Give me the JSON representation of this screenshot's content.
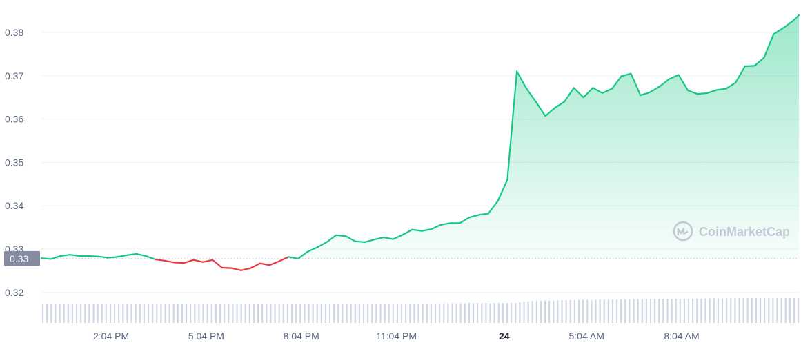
{
  "watermark": "CoinMarketCap",
  "chart_data": {
    "type": "line",
    "title": "",
    "xlabel": "",
    "ylabel": "",
    "ylim": [
      0.3135,
      0.3852
    ],
    "yticks": [
      "0.32",
      "0.33",
      "0.34",
      "0.35",
      "0.36",
      "0.37",
      "0.38"
    ],
    "xticks": [
      "2:04 PM",
      "5:04 PM",
      "8:04 PM",
      "11:04 PM",
      "24",
      "5:04 AM",
      "8:04 AM"
    ],
    "xticks_bold": [
      "24"
    ],
    "reference_price": 0.3278,
    "reference_label": "0.33",
    "grid": true,
    "legend": "none",
    "colors": {
      "up": "#16c784",
      "down": "#ea3943",
      "volume": "#cfd6e4",
      "reference_badge": "#858ca2"
    },
    "x_hours": [
      0,
      0.3,
      0.6,
      0.9,
      1.2,
      1.5,
      1.8,
      2.1,
      2.4,
      2.7,
      3.0,
      3.3,
      3.6,
      3.9,
      4.2,
      4.5,
      4.8,
      5.1,
      5.4,
      5.7,
      6.0,
      6.3,
      6.6,
      6.9,
      7.2,
      7.5,
      7.8,
      8.1,
      8.4,
      8.7,
      9.0,
      9.3,
      9.6,
      9.9,
      10.2,
      10.5,
      10.8,
      11.1,
      11.4,
      11.7,
      12.0,
      12.3,
      12.6,
      12.9,
      13.2,
      13.5,
      13.8,
      14.1,
      14.4,
      14.7,
      15.0,
      15.3,
      15.6,
      15.9,
      16.2,
      16.5,
      16.8,
      17.1,
      17.4,
      17.7,
      18.0,
      18.3,
      18.6,
      18.9,
      19.2,
      19.5,
      19.8,
      20.1,
      20.4,
      20.7,
      21.0,
      21.3,
      21.6,
      21.9,
      22.2,
      22.5,
      22.8,
      23.1,
      23.4,
      23.7,
      23.9
    ],
    "price": [
      0.3279,
      0.3277,
      0.3284,
      0.3287,
      0.3284,
      0.3284,
      0.3283,
      0.328,
      0.3282,
      0.3286,
      0.3289,
      0.3284,
      0.3276,
      0.3273,
      0.3269,
      0.3268,
      0.3275,
      0.327,
      0.3275,
      0.3257,
      0.3256,
      0.3251,
      0.3256,
      0.3267,
      0.3263,
      0.3272,
      0.3282,
      0.3278,
      0.3294,
      0.3304,
      0.3316,
      0.3332,
      0.333,
      0.3318,
      0.3316,
      0.3322,
      0.3327,
      0.3323,
      0.3333,
      0.3345,
      0.3342,
      0.3346,
      0.3356,
      0.336,
      0.336,
      0.3373,
      0.3379,
      0.3382,
      0.3411,
      0.346,
      0.371,
      0.3671,
      0.364,
      0.3607,
      0.3626,
      0.364,
      0.3672,
      0.365,
      0.3672,
      0.366,
      0.367,
      0.3699,
      0.3705,
      0.3655,
      0.3662,
      0.3675,
      0.3692,
      0.3702,
      0.3666,
      0.3658,
      0.366,
      0.3667,
      0.367,
      0.3684,
      0.3722,
      0.3723,
      0.3742,
      0.3796,
      0.381,
      0.3826,
      0.384
    ],
    "volume": [
      0.78,
      0.78,
      0.78,
      0.78,
      0.78,
      0.78,
      0.78,
      0.78,
      0.78,
      0.78,
      0.78,
      0.78,
      0.78,
      0.78,
      0.78,
      0.78,
      0.78,
      0.78,
      0.78,
      0.78,
      0.78,
      0.78,
      0.78,
      0.78,
      0.78,
      0.78,
      0.78,
      0.78,
      0.78,
      0.78,
      0.78,
      0.78,
      0.78,
      0.78,
      0.78,
      0.78,
      0.78,
      0.78,
      0.78,
      0.78,
      0.78,
      0.78,
      0.79,
      0.79,
      0.79,
      0.8,
      0.8,
      0.8,
      0.8,
      0.8,
      0.8,
      0.86,
      0.88,
      0.9,
      0.9,
      0.92,
      0.92,
      0.93,
      0.93,
      0.94,
      0.94,
      0.95,
      0.95,
      0.96,
      0.96,
      0.97,
      0.97,
      0.97,
      0.98,
      0.98,
      0.98,
      0.99,
      0.99,
      0.99,
      1.0,
      1.0,
      1.0,
      1.0,
      1.0,
      1.0,
      1.0
    ]
  }
}
